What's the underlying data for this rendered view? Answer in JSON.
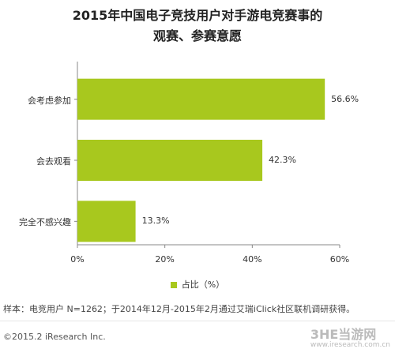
{
  "chart_data": {
    "type": "bar",
    "orientation": "horizontal",
    "title": "2015年中国电子竞技用户对手游电竞赛事的",
    "subtitle": "观赛、参赛意愿",
    "categories": [
      "会考虑参加",
      "会去观看",
      "完全不感兴趣"
    ],
    "series": [
      {
        "name": "占比（%）",
        "values": [
          56.6,
          42.3,
          13.3
        ],
        "labels": [
          "56.6%",
          "42.3%",
          "13.3%"
        ]
      }
    ],
    "xlim": [
      0,
      60
    ],
    "xticks": [
      0,
      20,
      40,
      60
    ],
    "xtick_labels": [
      "0%",
      "20%",
      "40%",
      "60%"
    ],
    "grid": false,
    "legend_position": "bottom",
    "bar_color": "#a8c81e"
  },
  "footer": {
    "note": "样本：电竞用户 N=1262；于2014年12月-2015年2月通过艾瑞iClick社区联机调研获得。",
    "copyright": "©2015.2 iResearch Inc.",
    "logo_main": "3HE当游网",
    "logo_sub": "www.iresearch.com.cn"
  }
}
